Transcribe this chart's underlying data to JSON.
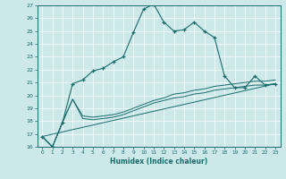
{
  "xlabel": "Humidex (Indice chaleur)",
  "bg_color": "#cce8e8",
  "line_color": "#1a6b6b",
  "ylim": [
    16,
    27
  ],
  "xlim": [
    -0.5,
    23.5
  ],
  "yticks": [
    16,
    17,
    18,
    19,
    20,
    21,
    22,
    23,
    24,
    25,
    26,
    27
  ],
  "xticks": [
    0,
    1,
    2,
    3,
    4,
    5,
    6,
    7,
    8,
    9,
    10,
    11,
    12,
    13,
    14,
    15,
    16,
    17,
    18,
    19,
    20,
    21,
    22,
    23
  ],
  "series1_x": [
    0,
    1,
    2,
    3,
    4,
    5,
    6,
    7,
    8,
    9,
    10,
    11,
    12,
    13,
    14,
    15,
    16,
    17,
    18,
    19,
    20,
    21,
    22,
    23
  ],
  "series1_y": [
    16.8,
    16.0,
    17.9,
    20.9,
    21.2,
    21.9,
    22.1,
    22.6,
    23.0,
    24.9,
    26.7,
    27.1,
    25.7,
    25.0,
    25.1,
    25.7,
    25.0,
    24.5,
    21.5,
    20.6,
    20.6,
    21.5,
    20.8,
    20.9
  ],
  "series2_x": [
    0,
    1,
    2,
    3,
    4,
    5,
    6,
    7,
    8,
    9,
    10,
    11,
    12,
    13,
    14,
    15,
    16,
    17,
    18,
    19,
    20,
    21,
    22,
    23
  ],
  "series2_y": [
    16.8,
    16.0,
    17.9,
    19.7,
    18.2,
    18.1,
    18.2,
    18.3,
    18.5,
    18.8,
    19.1,
    19.4,
    19.6,
    19.8,
    19.9,
    20.1,
    20.2,
    20.4,
    20.5,
    20.6,
    20.7,
    20.8,
    20.8,
    20.9
  ],
  "series3_x": [
    0,
    1,
    2,
    3,
    4,
    5,
    6,
    7,
    8,
    9,
    10,
    11,
    12,
    13,
    14,
    15,
    16,
    17,
    18,
    19,
    20,
    21,
    22,
    23
  ],
  "series3_y": [
    16.8,
    16.0,
    17.9,
    19.7,
    18.4,
    18.3,
    18.4,
    18.5,
    18.7,
    19.0,
    19.3,
    19.6,
    19.8,
    20.1,
    20.2,
    20.4,
    20.5,
    20.7,
    20.8,
    20.9,
    21.0,
    21.1,
    21.1,
    21.2
  ],
  "series4_x": [
    0,
    23
  ],
  "series4_y": [
    16.8,
    20.9
  ]
}
